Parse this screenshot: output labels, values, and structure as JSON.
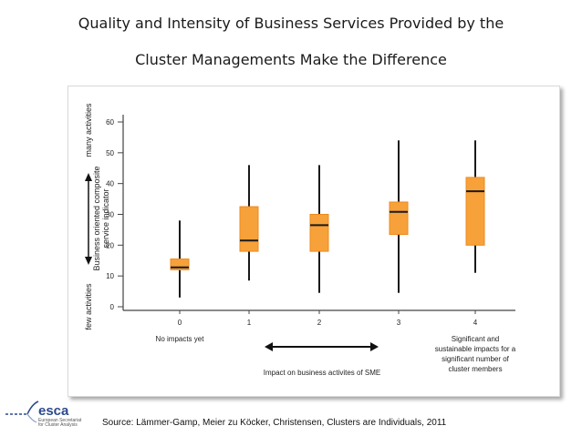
{
  "title": {
    "line1": "Quality and Intensity of Business Services Provided by the",
    "line2": "Cluster Managements Make the Difference"
  },
  "source": "Source: Lämmer-Gamp, Meier zu Köcker, Christensen, Clusters are Individuals, 2011",
  "logo": {
    "name": "esca",
    "subtitle1": "European Secretariat",
    "subtitle2": "for Cluster Analysis"
  },
  "colors": {
    "box_fill": "#f7a13a",
    "box_stroke": "#ee8a1c",
    "median": "#1a1a1a",
    "axis": "#444444",
    "logo_blue": "#2b4a8b"
  },
  "chart_data": {
    "type": "box",
    "x_categories": [
      "0",
      "1",
      "2",
      "3",
      "4"
    ],
    "category_notes": {
      "0": "No impacts yet",
      "4": [
        "Significant and",
        "sustainable impacts for a",
        "significant number of",
        "cluster members"
      ]
    },
    "y_ticks": [
      0,
      10,
      20,
      30,
      40,
      50,
      60
    ],
    "ylim": [
      0,
      60
    ],
    "ylabel_lines": [
      "Business oriented composite",
      "service indicator"
    ],
    "ylabel_low": "few activities",
    "ylabel_high": "many activities",
    "xlabel": "Impact on business activites of SME",
    "boxes": [
      {
        "category": "0",
        "min": 3,
        "q1": 12,
        "median": 12.8,
        "q3": 15.5,
        "max": 28
      },
      {
        "category": "1",
        "min": 8.5,
        "q1": 18,
        "median": 21.5,
        "q3": 32.5,
        "max": 46
      },
      {
        "category": "2",
        "min": 4.5,
        "q1": 18,
        "median": 26.5,
        "q3": 30,
        "max": 46
      },
      {
        "category": "3",
        "min": 4.5,
        "q1": 23.5,
        "median": 30.8,
        "q3": 34,
        "max": 54
      },
      {
        "category": "4",
        "min": 11,
        "q1": 20,
        "median": 37.5,
        "q3": 42,
        "max": 54
      }
    ],
    "grid": false
  }
}
